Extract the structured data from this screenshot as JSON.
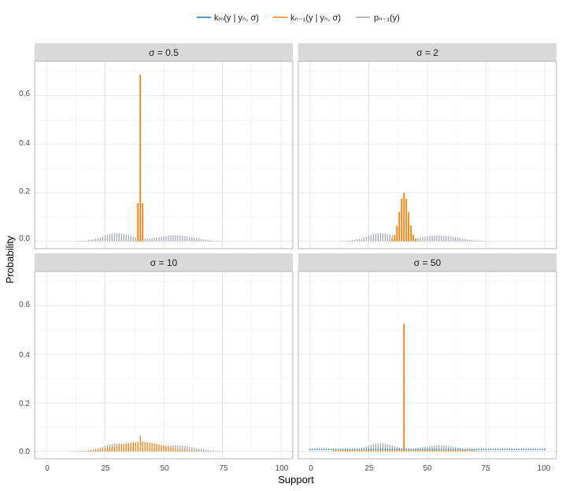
{
  "chart_data": {
    "type": "bar",
    "xlabel": "Support",
    "ylabel": "Probability",
    "xlim": [
      0,
      100
    ],
    "ylim": [
      0,
      0.7
    ],
    "x_ticks": [
      "0",
      "25",
      "50",
      "75",
      "100"
    ],
    "y_ticks": [
      "0.0",
      "0.2",
      "0.4",
      "0.6"
    ],
    "legend": {
      "position": "top",
      "entries": [
        {
          "label": "kₘ(y | yₙ, σ)",
          "color": "#1f77b4"
        },
        {
          "label": "kₙ₋₁(y | yₙ, σ)",
          "color": "#ff7f0e"
        },
        {
          "label": "pₙ₋₁(y)",
          "color": "#9ea3ad"
        }
      ]
    },
    "grid": true,
    "prior": {
      "name": "pₙ₋₁(y)",
      "color": "#9ea3ad",
      "mixture": [
        {
          "weight": 0.5,
          "mean": 30,
          "sd": 6
        },
        {
          "weight": 0.5,
          "mean": 55,
          "sd": 8
        }
      ],
      "support": [
        0,
        100
      ]
    },
    "panels": [
      {
        "label": "σ = 0.5",
        "kernel_series": [
          {
            "name": "kₙ₋₁(y | yₙ, σ)",
            "color": "#ff7f0e",
            "x": [
              39,
              40,
              41
            ],
            "values": [
              0.157,
              0.685,
              0.157
            ]
          }
        ]
      },
      {
        "label": "σ = 2",
        "kernel_series": [
          {
            "name": "kₙ₋₁(y | yₙ, σ)",
            "color": "#ff7f0e",
            "x": [
              35,
              36,
              37,
              38,
              39,
              40,
              41,
              42,
              43,
              44,
              45
            ],
            "values": [
              0.009,
              0.027,
              0.065,
              0.121,
              0.176,
              0.199,
              0.176,
              0.121,
              0.065,
              0.027,
              0.009
            ]
          }
        ]
      },
      {
        "label": "σ = 10",
        "kernel_series": [
          {
            "name": "kₙ₋₁(y | yₙ, σ)",
            "color": "#ff7f0e",
            "center": 40,
            "sd": 10,
            "spike": 0.065
          }
        ]
      },
      {
        "label": "σ = 50",
        "kernel_series": [
          {
            "name": "kₙ₋₁(y | yₙ, σ)",
            "color": "#ff7f0e",
            "x": [
              40
            ],
            "values": [
              0.525
            ],
            "baseline": 0.008
          },
          {
            "name": "kₘ(y | yₙ, σ)",
            "color": "#1f77b4",
            "uniform": 0.008
          }
        ]
      }
    ]
  }
}
